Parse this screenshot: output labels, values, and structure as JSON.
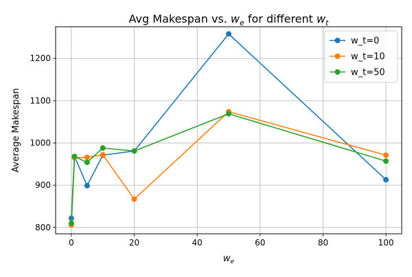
{
  "chart_data": {
    "type": "line",
    "title": "Avg Makespan vs. w_e for different w_t",
    "title_parts": {
      "prefix": "Avg Makespan vs. ",
      "we_base": "w",
      "we_sub": "e",
      "middle": " for different ",
      "wt_base": "w",
      "wt_sub": "t"
    },
    "xlabel": "w_e",
    "xlabel_parts": {
      "base": "w",
      "sub": "e"
    },
    "ylabel": "Average Makespan",
    "x": [
      0,
      1,
      5,
      10,
      20,
      50,
      100
    ],
    "series": [
      {
        "name": "w_t=0",
        "color": "#1f77b4",
        "values": [
          822,
          968,
          899,
          971,
          981,
          1258,
          913
        ]
      },
      {
        "name": "w_t=10",
        "color": "#ff7f0e",
        "values": [
          806,
          965,
          966,
          972,
          867,
          1074,
          971
        ]
      },
      {
        "name": "w_t=50",
        "color": "#2ca02c",
        "values": [
          810,
          968,
          954,
          988,
          981,
          1069,
          957
        ]
      }
    ],
    "xlim": [
      -5,
      105
    ],
    "ylim": [
      785,
      1275
    ],
    "xticks": [
      0,
      20,
      40,
      60,
      80,
      100
    ],
    "yticks": [
      800,
      900,
      1000,
      1100,
      1200
    ],
    "grid": true,
    "legend_position": "top-right"
  }
}
